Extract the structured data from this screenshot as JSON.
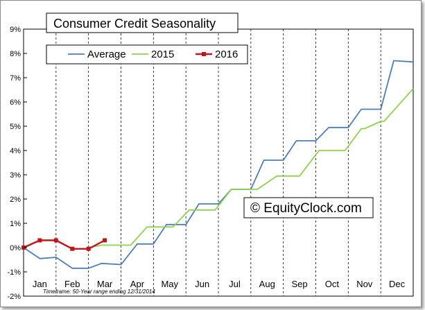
{
  "chart_data": {
    "type": "line",
    "title": "Consumer Credit Seasonality",
    "watermark": "© EquityClock.com",
    "footnote": "Timeframe: 50-Year range ending 12/31/2014",
    "xlabel": "",
    "ylabel": "",
    "x_ticks": [
      "Jan",
      "Feb",
      "Mar",
      "Apr",
      "May",
      "Jun",
      "Jul",
      "Aug",
      "Sep",
      "Oct",
      "Nov",
      "Dec"
    ],
    "y_ticks": [
      "-2%",
      "-1%",
      "0%",
      "1%",
      "2%",
      "3%",
      "4%",
      "5%",
      "6%",
      "7%",
      "8%",
      "9%"
    ],
    "xlim": [
      0,
      12
    ],
    "ylim": [
      -2,
      9
    ],
    "grid": "vertical dashed",
    "legend_position": "top-left",
    "series": [
      {
        "name": "Average",
        "color": "#4a7ebb",
        "x": [
          0,
          0.5,
          1.0,
          1.5,
          2.0,
          2.4,
          3.0,
          3.5,
          4.0,
          4.4,
          5.0,
          5.4,
          6.0,
          6.4,
          7.0,
          7.4,
          8.0,
          8.4,
          9.0,
          9.4,
          10.0,
          10.4,
          11.0,
          11.4,
          12.0
        ],
        "y": [
          0,
          -0.45,
          -0.4,
          -0.85,
          -0.85,
          -0.65,
          -0.7,
          0.15,
          0.15,
          0.95,
          0.95,
          1.8,
          1.8,
          2.4,
          2.4,
          3.6,
          3.6,
          4.4,
          4.4,
          4.95,
          4.95,
          5.7,
          5.7,
          7.7,
          7.65
        ]
      },
      {
        "name": "2015",
        "color": "#8fd24a",
        "x": [
          2.0,
          2.4,
          2.7,
          3.2,
          3.3,
          3.8,
          3.9,
          4.5,
          4.6,
          5.1,
          5.2,
          5.8,
          5.9,
          6.4,
          6.5,
          7.1,
          7.2,
          7.8,
          7.9,
          8.4,
          8.5,
          9.1,
          9.2,
          9.8,
          9.9,
          10.4,
          10.5,
          11.0,
          11.1,
          12.0
        ],
        "y": [
          0,
          0.1,
          0.1,
          0.1,
          0.1,
          0.85,
          0.85,
          0.85,
          0.85,
          1.55,
          1.55,
          1.55,
          1.55,
          2.4,
          2.4,
          2.4,
          2.4,
          2.95,
          2.95,
          2.95,
          2.95,
          4.0,
          4.0,
          4.0,
          4.0,
          4.9,
          4.9,
          5.2,
          5.2,
          6.55
        ]
      },
      {
        "name": "2016",
        "color": "#c0161b",
        "x": [
          0,
          0.5,
          1.0,
          1.5,
          2.0,
          2.5
        ],
        "y": [
          0,
          0.3,
          0.3,
          -0.05,
          -0.05,
          0.3
        ]
      }
    ]
  }
}
